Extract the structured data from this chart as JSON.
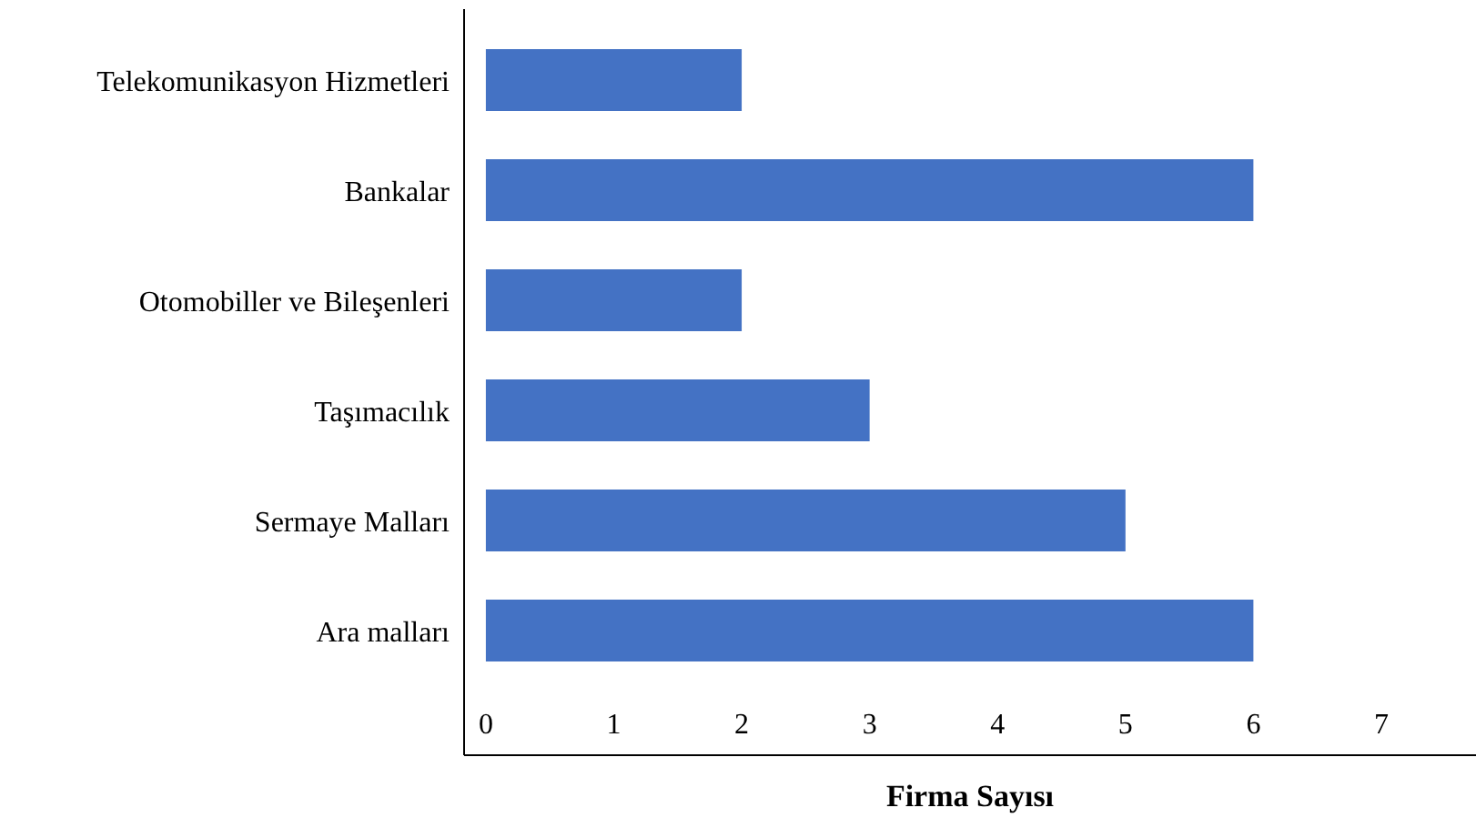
{
  "chart_data": {
    "type": "bar",
    "orientation": "horizontal",
    "xlabel": "Firma Sayısı",
    "categories": [
      "Telekomunikasyon Hizmetleri",
      "Bankalar",
      "Otomobiller ve Bileşenleri",
      "Taşımacılık",
      "Sermaye Malları",
      "Ara malları"
    ],
    "values": [
      2,
      6,
      2,
      3,
      5,
      6
    ],
    "color": "#4472c4",
    "xlim": [
      -0.17,
      7.74
    ],
    "xticks": [
      0,
      1,
      2,
      3,
      4,
      5,
      6,
      7
    ],
    "grid": false,
    "legend": false
  }
}
